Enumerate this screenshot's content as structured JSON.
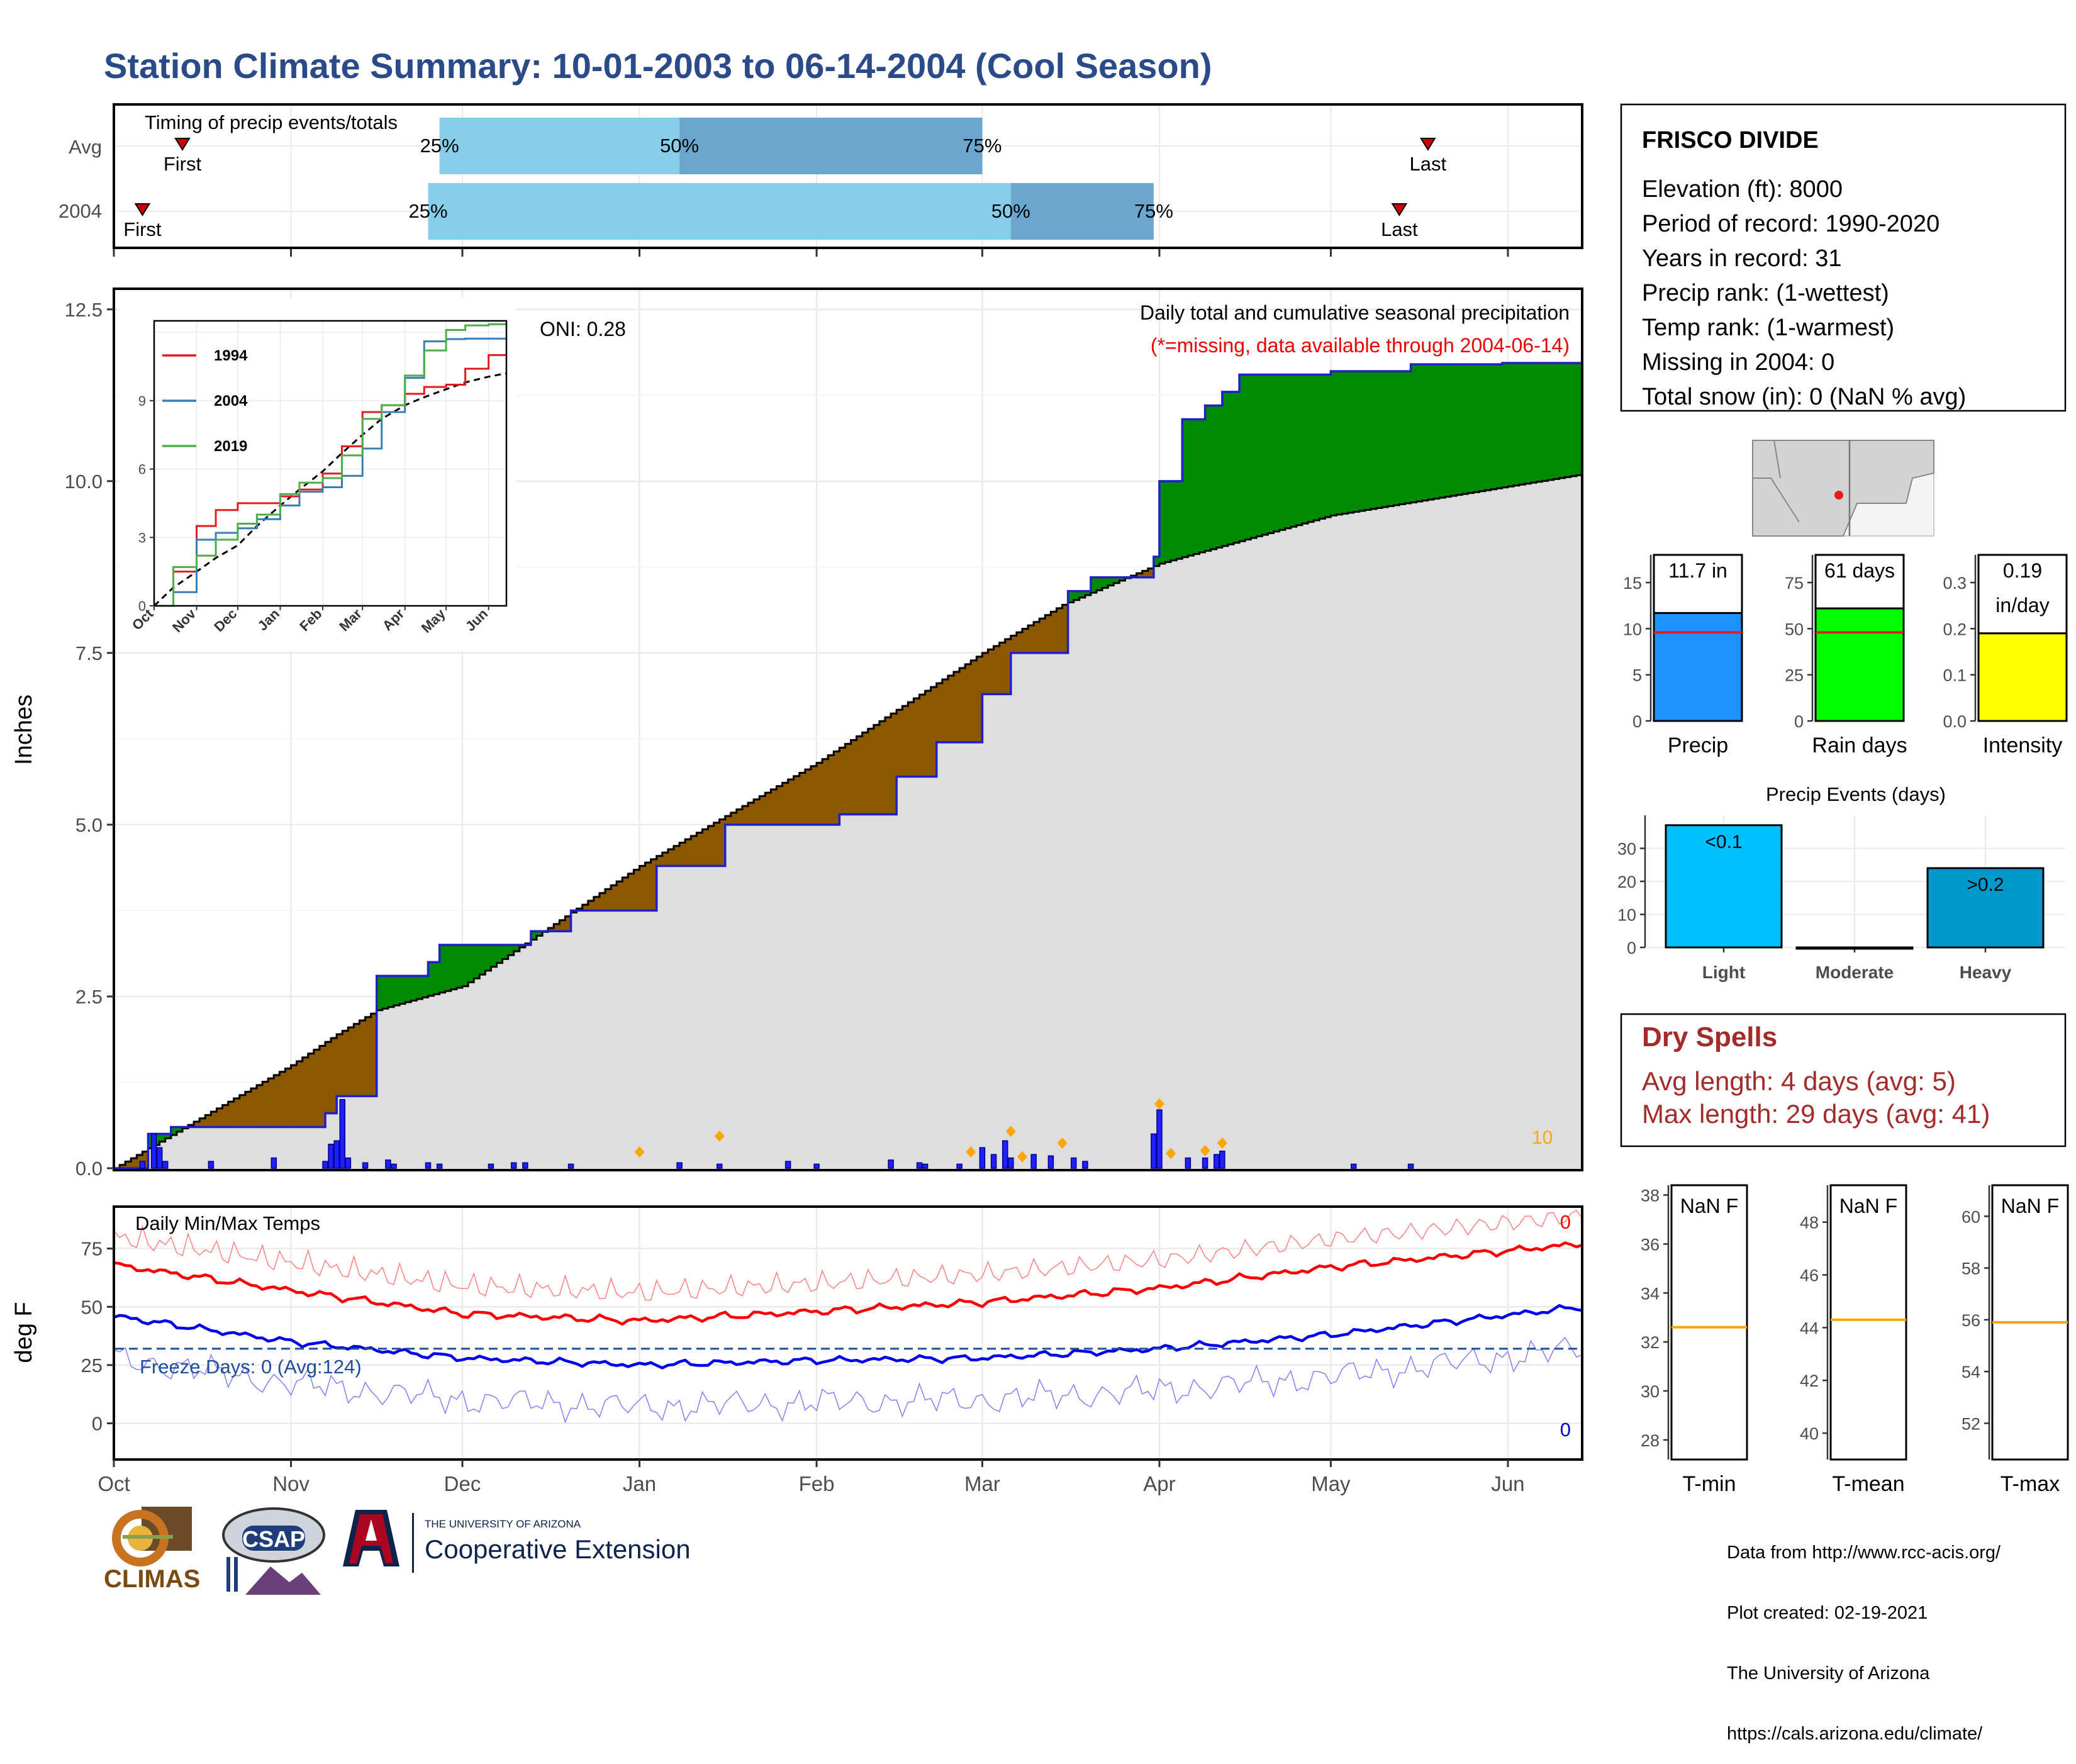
{
  "title": "Station Climate Summary: 10-01-2003 to 06-14-2004 (Cool Season)",
  "colors": {
    "title": "#2a4a8a",
    "accent_blue": "#1f1fcc",
    "green_fill": "#008a00",
    "brown_fill": "#8b5800",
    "avg_fill": "#dedede",
    "light_blue": "#87ceeb",
    "mid_blue": "#6aa6ce",
    "red": "#e41a1c",
    "orange": "#ffa500",
    "dry_spell_red": "#a52a2a"
  },
  "timing": {
    "label": "Timing of precip events/totals",
    "rows": [
      {
        "name": "Avg",
        "first": "First",
        "last": "Last",
        "p25": "25%",
        "p50": "50%",
        "p75": "75%",
        "first_date": "2003-10-13",
        "p25_date": "2003-11-27",
        "p50_date": "2004-01-08",
        "p75_date": "2004-03-01",
        "last_date": "2004-05-18"
      },
      {
        "name": "2004",
        "first": "First",
        "last": "Last",
        "p25": "25%",
        "p50": "50%",
        "p75": "75%",
        "first_date": "2003-10-06",
        "p25_date": "2003-11-25",
        "p50_date": "2004-03-06",
        "p75_date": "2004-03-31",
        "last_date": "2004-05-13"
      }
    ]
  },
  "main_chart": {
    "ylabel": "Inches",
    "yticks": [
      "0.0",
      "2.5",
      "5.0",
      "7.5",
      "10.0",
      "12.5"
    ],
    "subtitle": "Daily total and cumulative seasonal precipitation",
    "missing_note": "(*=missing, data available through 2004-06-14)",
    "oni": "ONI: 0.28",
    "corner_value": "10"
  },
  "inset": {
    "yticks": [
      "0",
      "3",
      "6",
      "9"
    ],
    "xticks": [
      "Oct",
      "Nov",
      "Dec",
      "Jan",
      "Feb",
      "Mar",
      "Apr",
      "May",
      "Jun"
    ],
    "legend": [
      "1994",
      "2004",
      "2019"
    ]
  },
  "temp_chart": {
    "ylabel": "deg F",
    "label": "Daily Min/Max Temps",
    "freeze_text": "Freeze Days: 0 (Avg:124)",
    "yticks": [
      "0",
      "25",
      "50",
      "75"
    ],
    "top_count": "0",
    "bottom_count": "0",
    "xticks": [
      "Oct",
      "Nov",
      "Dec",
      "Jan",
      "Feb",
      "Mar",
      "Apr",
      "May",
      "Jun"
    ]
  },
  "station": {
    "name": "FRISCO DIVIDE",
    "lines": [
      "Elevation (ft): 8000",
      "Period of record: 1990-2020",
      "Years in record: 31",
      "Precip rank:  (1-wettest)",
      "Temp rank:  (1-warmest)",
      "Missing in 2004: 0",
      "Total snow (in): 0 (NaN % avg)"
    ]
  },
  "mini_bars": [
    {
      "label": "Precip",
      "value_text": "11.7 in",
      "color": "#1e90ff",
      "yticks": [
        "0",
        "5",
        "10",
        "15"
      ]
    },
    {
      "label": "Rain days",
      "value_text": "61 days",
      "color": "#00ff00",
      "yticks": [
        "0",
        "25",
        "50",
        "75"
      ]
    },
    {
      "label": "Intensity",
      "value_text": "0.19\nin/day",
      "color": "#ffff00",
      "yticks": [
        "0.0",
        "0.1",
        "0.2",
        "0.3"
      ]
    }
  ],
  "events": {
    "title": "Precip Events (days)",
    "yticks": [
      "0",
      "10",
      "20",
      "30"
    ],
    "bars": [
      {
        "label": "Light",
        "text": "<0.1"
      },
      {
        "label": "Moderate",
        "text": ""
      },
      {
        "label": "Heavy",
        "text": ">0.2"
      }
    ]
  },
  "dry_spells": {
    "title": "Dry Spells",
    "avg_line": "Avg length: 4 days (avg: 5)",
    "max_line": "Max length: 29 days (avg: 41)"
  },
  "temp_boxes": [
    {
      "label": "T-min",
      "value_text": "NaN F",
      "yticks": [
        "28",
        "30",
        "32",
        "34",
        "36",
        "38"
      ]
    },
    {
      "label": "T-mean",
      "value_text": "NaN F",
      "yticks": [
        "40",
        "42",
        "44",
        "46",
        "48"
      ]
    },
    {
      "label": "T-max",
      "value_text": "NaN F",
      "yticks": [
        "52",
        "54",
        "56",
        "58",
        "60"
      ]
    }
  ],
  "logos": {
    "climas": "CLIMAS",
    "csap": "CSAP",
    "ua_small": "THE UNIVERSITY OF ARIZONA",
    "coop": "Cooperative Extension"
  },
  "credit": [
    "Data from http://www.rcc-acis.org/",
    "Plot created: 02-19-2021",
    "The University of Arizona",
    "https://cals.arizona.edu/climate/"
  ],
  "chart_data": [
    {
      "type": "area",
      "title": "Daily total and cumulative seasonal precipitation",
      "ylabel": "Inches",
      "ylim": [
        0,
        12.8
      ],
      "x_range": [
        "2003-10-01",
        "2004-06-14"
      ],
      "series": [
        {
          "name": "2004",
          "x": [
            "2003-10-01",
            "2003-10-07",
            "2003-10-11",
            "2003-11-07",
            "2003-11-09",
            "2003-11-16",
            "2003-11-25",
            "2003-11-27",
            "2003-12-13",
            "2003-12-20",
            "2004-01-04",
            "2004-01-16",
            "2004-02-05",
            "2004-02-15",
            "2004-02-22",
            "2004-03-01",
            "2004-03-06",
            "2004-03-16",
            "2004-03-20",
            "2004-03-31",
            "2004-04-01",
            "2004-04-05",
            "2004-04-09",
            "2004-04-12",
            "2004-04-15",
            "2004-05-01",
            "2004-05-15",
            "2004-05-31",
            "2004-06-14"
          ],
          "values": [
            0.0,
            0.5,
            0.6,
            0.8,
            1.05,
            2.8,
            3.0,
            3.25,
            3.45,
            3.75,
            4.4,
            5.0,
            5.15,
            5.7,
            6.2,
            6.9,
            7.5,
            8.4,
            8.6,
            8.9,
            10.0,
            10.9,
            11.1,
            11.3,
            11.55,
            11.6,
            11.7,
            11.72,
            11.72
          ]
        },
        {
          "name": "Avg",
          "x": [
            "2003-10-01",
            "2003-11-01",
            "2003-11-09",
            "2003-11-16",
            "2003-12-01",
            "2004-01-01",
            "2004-02-01",
            "2004-03-01",
            "2004-03-15",
            "2004-04-01",
            "2004-05-01",
            "2004-06-14"
          ],
          "values": [
            0.0,
            1.5,
            1.95,
            2.3,
            2.65,
            4.4,
            5.9,
            7.5,
            8.2,
            8.8,
            9.5,
            10.1
          ]
        }
      ],
      "daily_bars": {
        "x": [
          "2003-10-06",
          "2003-10-08",
          "2003-10-09",
          "2003-10-10",
          "2003-10-18",
          "2003-10-29",
          "2003-11-07",
          "2003-11-08",
          "2003-11-09",
          "2003-11-10",
          "2003-11-11",
          "2003-11-14",
          "2003-11-18",
          "2003-11-19",
          "2003-11-25",
          "2003-11-27",
          "2003-12-06",
          "2003-12-10",
          "2003-12-12",
          "2003-12-20",
          "2004-01-08",
          "2004-01-15",
          "2004-01-27",
          "2004-02-01",
          "2004-02-14",
          "2004-02-19",
          "2004-02-20",
          "2004-02-26",
          "2004-03-01",
          "2004-03-03",
          "2004-03-05",
          "2004-03-06",
          "2004-03-10",
          "2004-03-13",
          "2004-03-17",
          "2004-03-19",
          "2004-03-31",
          "2004-04-01",
          "2004-04-06",
          "2004-04-09",
          "2004-04-11",
          "2004-04-12",
          "2004-05-05",
          "2004-05-15"
        ],
        "values": [
          0.1,
          0.5,
          0.3,
          0.1,
          0.1,
          0.15,
          0.1,
          0.35,
          0.4,
          1.0,
          0.15,
          0.08,
          0.12,
          0.06,
          0.08,
          0.06,
          0.06,
          0.08,
          0.08,
          0.06,
          0.08,
          0.06,
          0.1,
          0.06,
          0.12,
          0.08,
          0.06,
          0.06,
          0.3,
          0.2,
          0.4,
          0.15,
          0.2,
          0.18,
          0.15,
          0.1,
          0.5,
          0.85,
          0.15,
          0.15,
          0.2,
          0.25,
          0.06,
          0.06
        ]
      }
    },
    {
      "type": "line",
      "title": "Daily Min/Max Temps",
      "ylabel": "deg F",
      "ylim": [
        -15,
        93
      ],
      "x": [
        "2003-10-01",
        "2003-11-01",
        "2003-12-01",
        "2004-01-01",
        "2004-02-01",
        "2004-03-01",
        "2004-04-01",
        "2004-05-01",
        "2004-06-14"
      ],
      "series": [
        {
          "name": "Avg Max",
          "values": [
            68,
            57,
            47,
            44,
            48,
            52,
            58,
            67,
            77
          ]
        },
        {
          "name": "Avg Min",
          "values": [
            46,
            35,
            28,
            25,
            27,
            28,
            32,
            38,
            50
          ]
        }
      ],
      "freeze_line": 32
    },
    {
      "type": "bar",
      "title": "Precip Events (days)",
      "categories": [
        "Light",
        "Moderate",
        "Heavy"
      ],
      "values": [
        37,
        0,
        24
      ],
      "ylim": [
        0,
        40
      ]
    },
    {
      "type": "bar",
      "categories": [
        "Precip",
        "Rain days",
        "Intensity"
      ],
      "values": [
        11.7,
        61,
        0.19
      ],
      "averages": [
        9.6,
        48,
        0.2
      ]
    }
  ]
}
